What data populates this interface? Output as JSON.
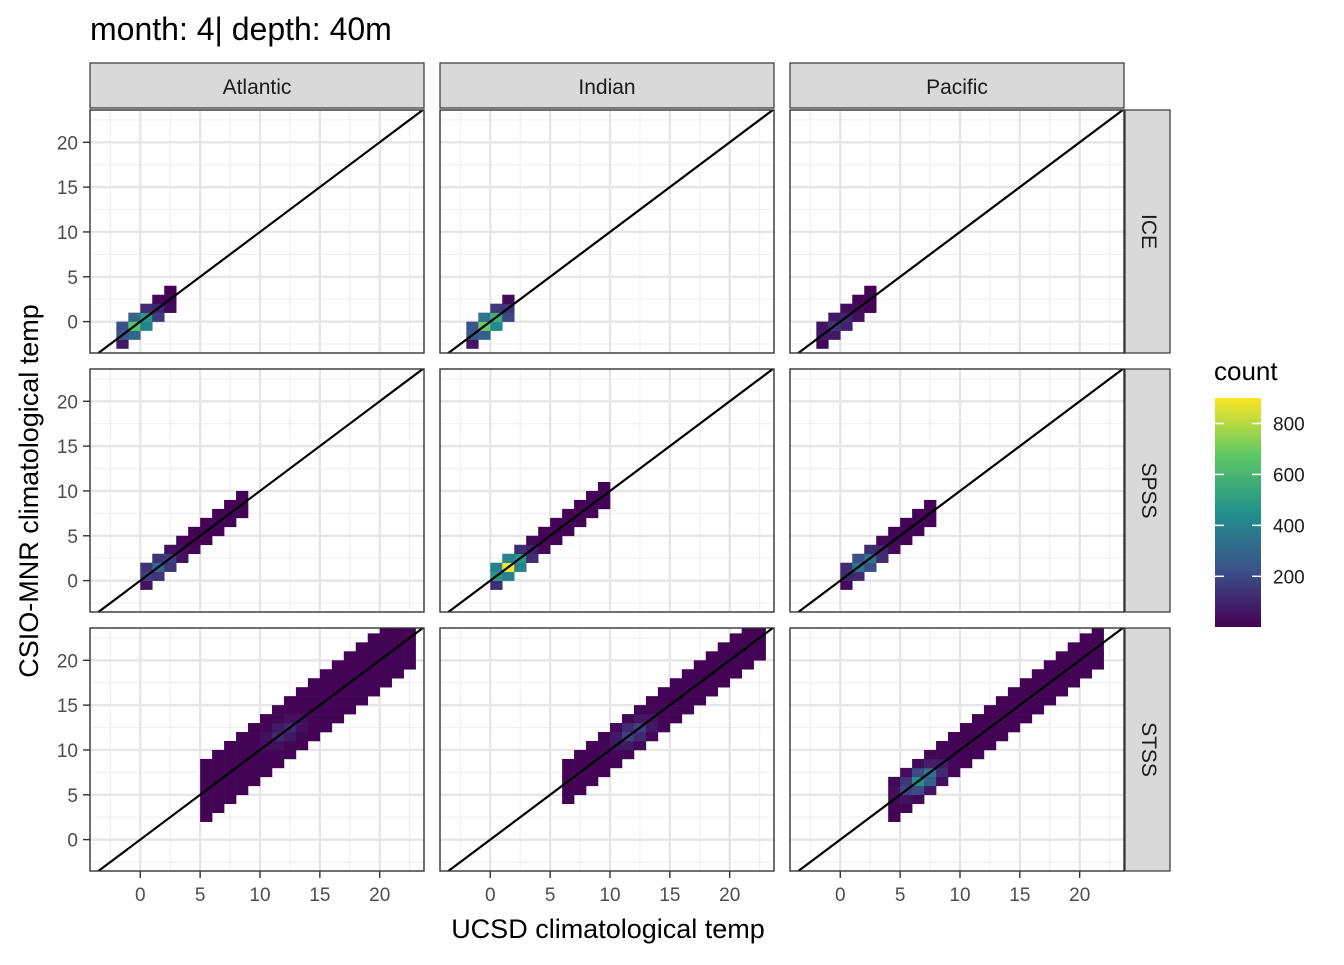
{
  "chart_data": {
    "type": "heatmap",
    "title": "month: 4| depth: 40m",
    "xlabel": "UCSD climatological temp",
    "ylabel": "CSIO-MNR climatological temp",
    "xlim": [
      -4.2,
      23.7
    ],
    "ylim": [
      -3.5,
      23.6
    ],
    "x_ticks": [
      0,
      5,
      10,
      15,
      20
    ],
    "y_ticks": [
      0,
      5,
      10,
      15,
      20
    ],
    "grid": true,
    "reference_line": "y = x",
    "columns": [
      "Atlantic",
      "Indian",
      "Pacific"
    ],
    "rows": [
      "ICE",
      "SPSS",
      "STSS"
    ],
    "legend": {
      "title": "count",
      "position": "right",
      "ticks": [
        200,
        400,
        600,
        800
      ],
      "range": [
        1,
        900
      ],
      "colors": [
        "#440154",
        "#3b528b",
        "#21908c",
        "#5dc863",
        "#fde725"
      ]
    },
    "panels": [
      {
        "row": "ICE",
        "col": "Atlantic",
        "xrange": [
          -2,
          2.5
        ],
        "width": 1.6,
        "peak": [
          0,
          -0.5
        ],
        "peak_count": 700
      },
      {
        "row": "ICE",
        "col": "Indian",
        "xrange": [
          -1.5,
          1.5
        ],
        "width": 1.4,
        "peak": [
          0,
          -0.3
        ],
        "peak_count": 750
      },
      {
        "row": "ICE",
        "col": "Pacific",
        "xrange": [
          -1.5,
          2.5
        ],
        "width": 1.6,
        "peak": [
          0,
          -0.5
        ],
        "peak_count": 150
      },
      {
        "row": "SPSS",
        "col": "Atlantic",
        "xrange": [
          0,
          8.5
        ],
        "width": 1.8,
        "peak": [
          1.5,
          1.5
        ],
        "peak_count": 300
      },
      {
        "row": "SPSS",
        "col": "Indian",
        "xrange": [
          0.5,
          9.5
        ],
        "width": 1.8,
        "peak": [
          1.5,
          1.5
        ],
        "peak_count": 880
      },
      {
        "row": "SPSS",
        "col": "Pacific",
        "xrange": [
          0,
          7.5
        ],
        "width": 1.8,
        "peak": [
          2,
          2
        ],
        "peak_count": 400
      },
      {
        "row": "STSS",
        "col": "Atlantic",
        "xrange": [
          5,
          22.5
        ],
        "width": 3.5,
        "peak": [
          12,
          12
        ],
        "peak_count": 120
      },
      {
        "row": "STSS",
        "col": "Indian",
        "xrange": [
          6,
          22.5
        ],
        "width": 2.6,
        "peak": [
          12,
          12
        ],
        "peak_count": 200
      },
      {
        "row": "STSS",
        "col": "Pacific",
        "xrange": [
          4,
          22
        ],
        "width": 2.4,
        "peak": [
          7,
          6.5
        ],
        "peak_count": 480
      }
    ]
  }
}
